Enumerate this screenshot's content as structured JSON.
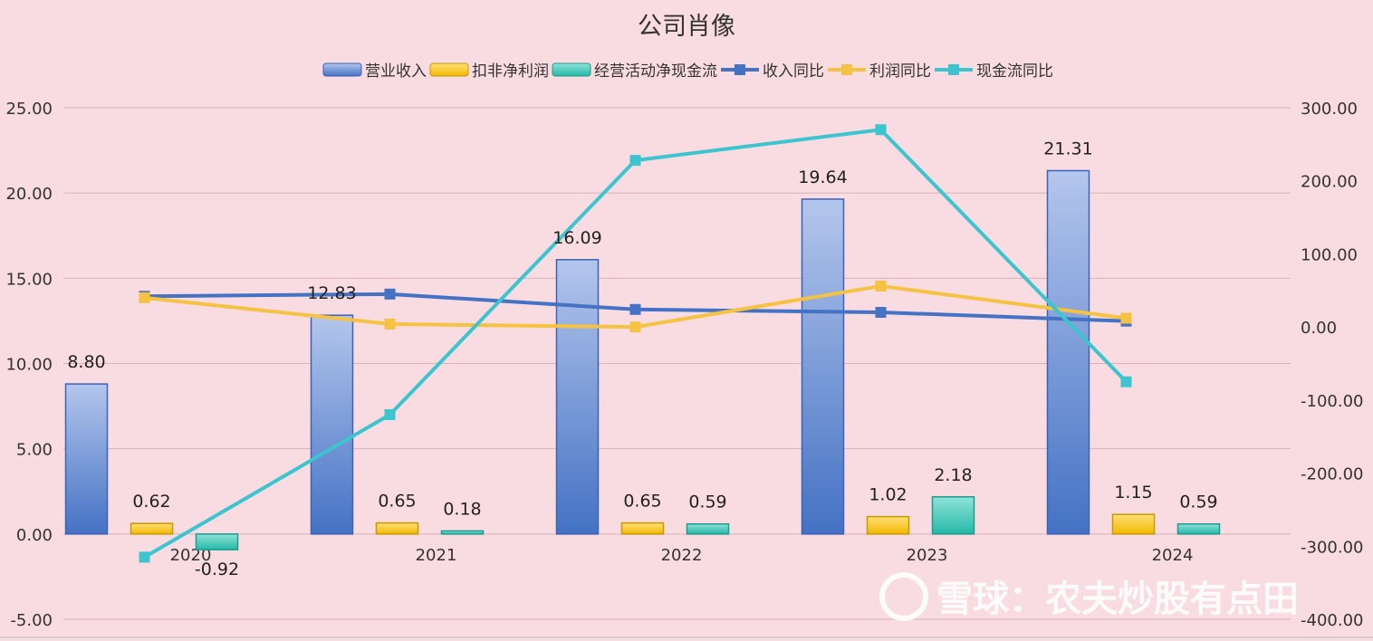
{
  "chart_data": {
    "type": "bar",
    "title": "公司肖像",
    "categories": [
      "2020",
      "2021",
      "2022",
      "2023",
      "2024"
    ],
    "y_left": {
      "ylim": [
        -5,
        25
      ],
      "ticks": [
        "25.00",
        "20.00",
        "15.00",
        "10.00",
        "5.00",
        "0.00",
        "-5.00"
      ]
    },
    "y_right": {
      "ylim": [
        -400,
        300
      ],
      "ticks": [
        "300.00",
        "200.00",
        "100.00",
        "0.00",
        "-100.00",
        "-200.00",
        "-300.00",
        "-400.00"
      ]
    },
    "bar_series": [
      {
        "name": "营业收入",
        "values": [
          8.8,
          12.83,
          16.09,
          19.64,
          21.31
        ],
        "labels": [
          "8.80",
          "12.83",
          "16.09",
          "19.64",
          "21.31"
        ],
        "color_top": "#b4c6ec",
        "color_bottom": "#4472c4",
        "stroke": "#3a62b6"
      },
      {
        "name": "扣非净利润",
        "values": [
          0.62,
          0.65,
          0.65,
          1.02,
          1.15
        ],
        "labels": [
          "0.62",
          "0.65",
          "0.65",
          "1.02",
          "1.15"
        ],
        "color_top": "#ffe07a",
        "color_bottom": "#f2b800",
        "stroke": "#c89a00"
      },
      {
        "name": "经营活动净现金流",
        "values": [
          -0.92,
          0.18,
          0.59,
          2.18,
          0.59
        ],
        "labels": [
          "-0.92",
          "0.18",
          "0.59",
          "2.18",
          "0.59"
        ],
        "color_top": "#8fe3d8",
        "color_bottom": "#25b8a7",
        "stroke": "#1c9c8d"
      }
    ],
    "line_series": [
      {
        "name": "收入同比",
        "axis": "right",
        "values": [
          42,
          45,
          24,
          20,
          8
        ],
        "color": "#4472c4"
      },
      {
        "name": "利润同比",
        "axis": "right",
        "values": [
          40,
          4,
          0,
          56,
          12
        ],
        "color": "#f5c242"
      },
      {
        "name": "现金流同比",
        "axis": "right",
        "values": [
          -315,
          -120,
          228,
          270,
          -75
        ],
        "color": "#3cc4cf"
      }
    ],
    "legend_position": "top-center",
    "grid": true
  },
  "watermark": "雪球：农夫炒股有点田"
}
